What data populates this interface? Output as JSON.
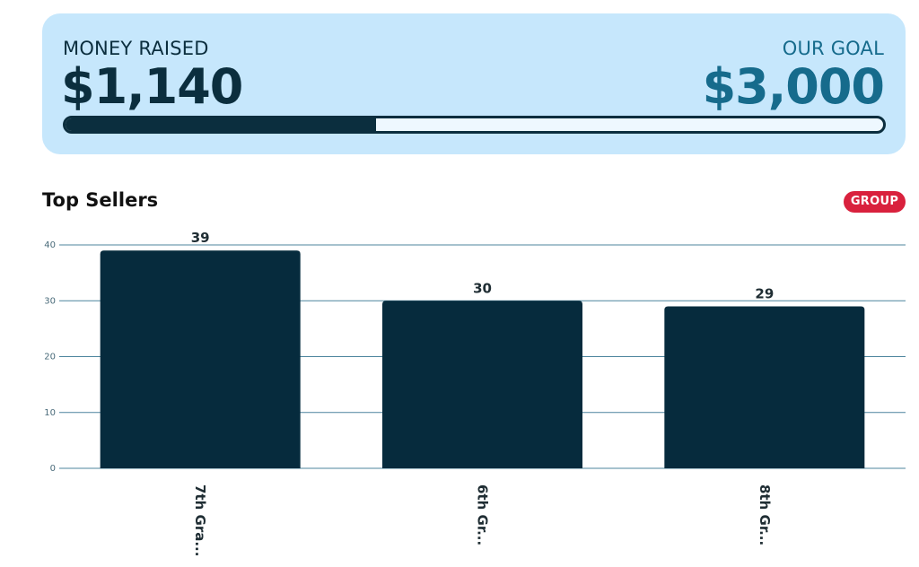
{
  "summary": {
    "raised_label": "MONEY RAISED",
    "raised_amount": "$1,140",
    "goal_label": "OUR GOAL",
    "goal_amount": "$3,000",
    "progress_fraction": 0.38
  },
  "section": {
    "title": "Top Sellers",
    "badge": "GROUP"
  },
  "colors": {
    "card_bg": "#c6e7fc",
    "primary": "#0b2e3e",
    "goal_accent": "#166b8c",
    "badge_bg": "#d9213d",
    "bar": "#062b3d",
    "gridline": "#2d6f8d"
  },
  "chart_data": {
    "type": "bar",
    "categories": [
      "7th Gra...",
      "6th Gr...",
      "8th Gr..."
    ],
    "values": [
      39,
      30,
      29
    ],
    "data_labels": [
      "39",
      "30",
      "29"
    ],
    "ylim": [
      0,
      40
    ],
    "yticks": [
      "0",
      "10",
      "20",
      "30",
      "40"
    ],
    "grid": true,
    "xlabel": "",
    "ylabel": ""
  }
}
